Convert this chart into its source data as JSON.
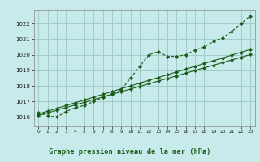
{
  "xlabel": "Graphe pression niveau de la mer (hPa)",
  "bg_color": "#c8eaea",
  "grid_color": "#a0cccc",
  "line_color": "#1a5c1a",
  "xlim": [
    -0.5,
    23.5
  ],
  "ylim": [
    1015.4,
    1022.9
  ],
  "yticks": [
    1016,
    1017,
    1018,
    1019,
    1020,
    1021,
    1022
  ],
  "xticks": [
    0,
    1,
    2,
    3,
    4,
    5,
    6,
    7,
    8,
    9,
    10,
    11,
    12,
    13,
    14,
    15,
    16,
    17,
    18,
    19,
    20,
    21,
    22,
    23
  ],
  "x": [
    0,
    1,
    2,
    3,
    4,
    5,
    6,
    7,
    8,
    9,
    10,
    11,
    12,
    13,
    14,
    15,
    16,
    17,
    18,
    19,
    20,
    21,
    22,
    23
  ],
  "y_actual": [
    1016.3,
    1016.1,
    1016.0,
    1016.35,
    1016.6,
    1016.75,
    1017.0,
    1017.25,
    1017.5,
    1017.75,
    1018.5,
    1019.25,
    1020.0,
    1020.2,
    1019.9,
    1019.9,
    1020.0,
    1020.3,
    1020.5,
    1020.85,
    1021.1,
    1021.5,
    1022.0,
    1022.5
  ],
  "y_linear1": [
    1016.1,
    1016.27,
    1016.44,
    1016.61,
    1016.78,
    1016.95,
    1017.12,
    1017.29,
    1017.46,
    1017.63,
    1017.8,
    1017.97,
    1018.14,
    1018.31,
    1018.48,
    1018.65,
    1018.82,
    1018.99,
    1019.16,
    1019.33,
    1019.5,
    1019.67,
    1019.84,
    1020.01
  ],
  "y_linear2": [
    1016.2,
    1016.38,
    1016.56,
    1016.74,
    1016.92,
    1017.1,
    1017.28,
    1017.46,
    1017.64,
    1017.82,
    1018.0,
    1018.18,
    1018.36,
    1018.54,
    1018.72,
    1018.9,
    1019.08,
    1019.26,
    1019.44,
    1019.62,
    1019.8,
    1019.98,
    1020.16,
    1020.34
  ]
}
